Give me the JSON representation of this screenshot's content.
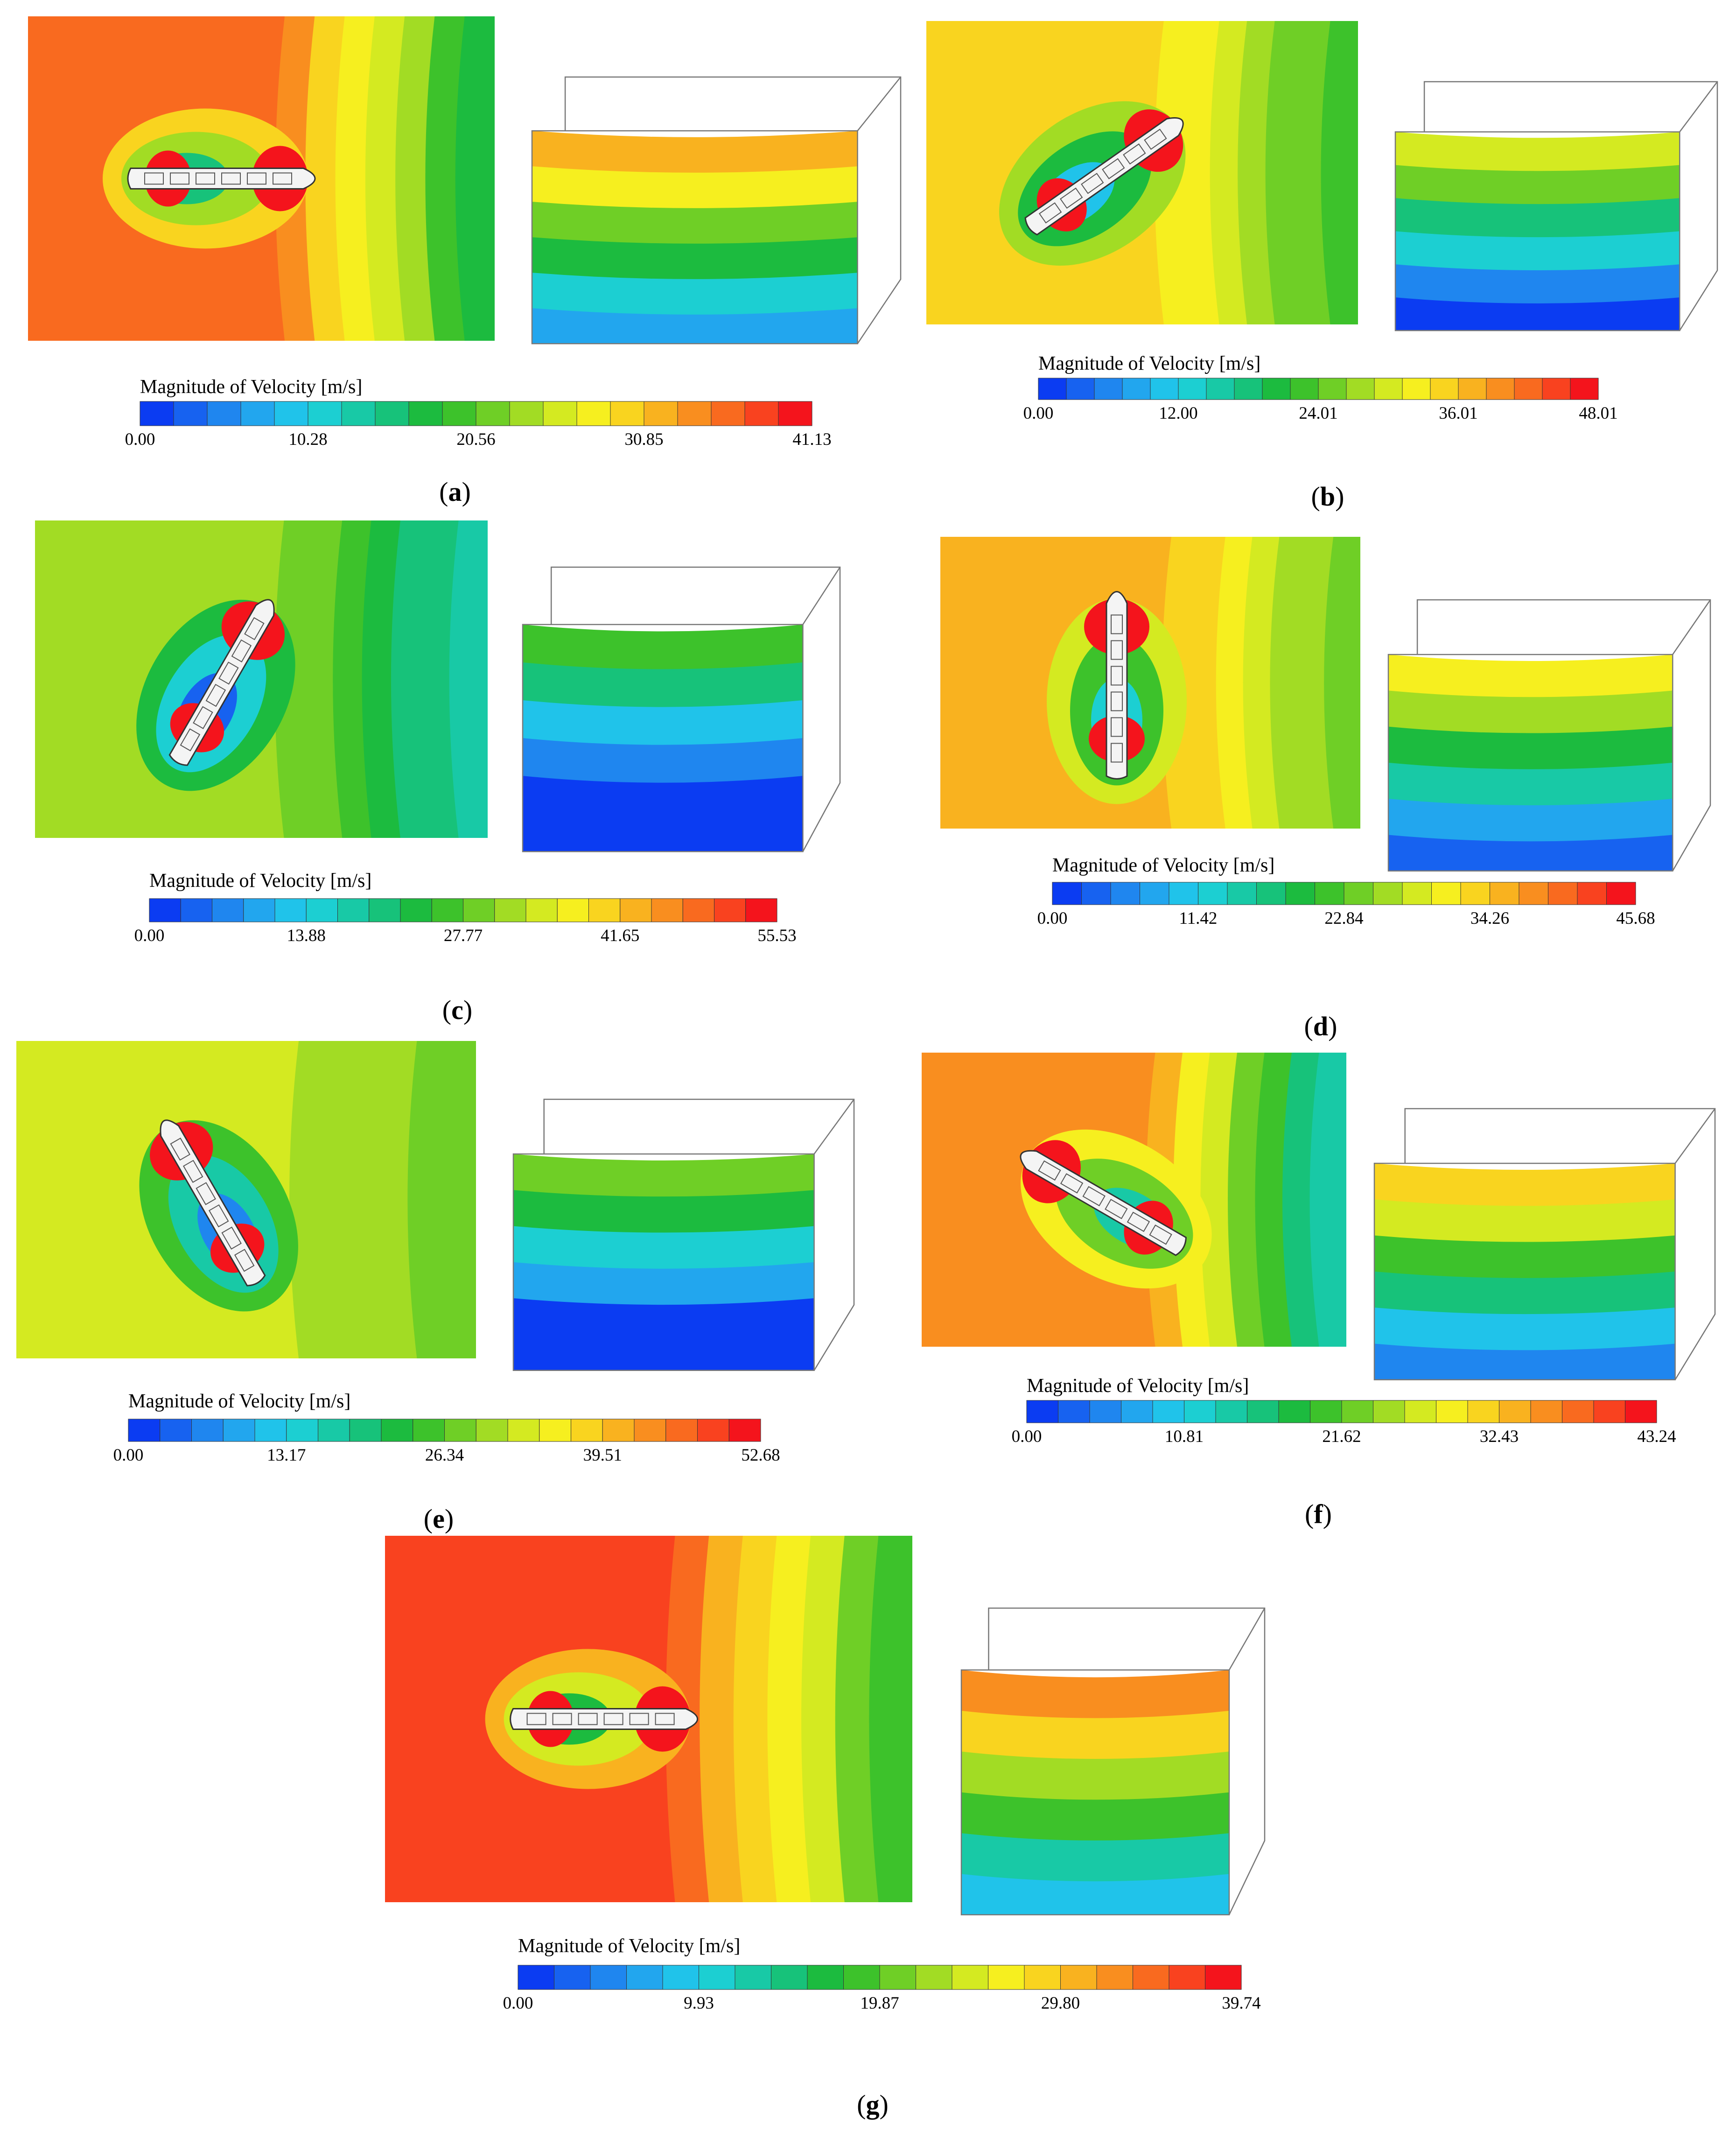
{
  "figure": {
    "panels": [
      {
        "id": "a",
        "colorbar_title": "Magnitude of Velocity [m/s]",
        "ticks": [
          "0.00",
          "10.28",
          "20.56",
          "30.85",
          "41.13"
        ],
        "caption_label": "a",
        "ship_angle_deg": 0
      },
      {
        "id": "b",
        "colorbar_title": "Magnitude of Velocity [m/s]",
        "ticks": [
          "0.00",
          "12.00",
          "24.01",
          "36.01",
          "48.01"
        ],
        "caption_label": "b",
        "ship_angle_deg": -35
      },
      {
        "id": "c",
        "colorbar_title": "Magnitude of Velocity [m/s]",
        "ticks": [
          "0.00",
          "13.88",
          "27.77",
          "41.65",
          "55.53"
        ],
        "caption_label": "c",
        "ship_angle_deg": -60
      },
      {
        "id": "d",
        "colorbar_title": "Magnitude of Velocity [m/s]",
        "ticks": [
          "0.00",
          "11.42",
          "22.84",
          "34.26",
          "45.68"
        ],
        "caption_label": "d",
        "ship_angle_deg": -90
      },
      {
        "id": "e",
        "colorbar_title": "Magnitude of Velocity [m/s]",
        "ticks": [
          "0.00",
          "13.17",
          "26.34",
          "39.51",
          "52.68"
        ],
        "caption_label": "e",
        "ship_angle_deg": -120
      },
      {
        "id": "f",
        "colorbar_title": "Magnitude of Velocity [m/s]",
        "ticks": [
          "0.00",
          "10.81",
          "21.62",
          "32.43",
          "43.24"
        ],
        "caption_label": "f",
        "ship_angle_deg": -150
      },
      {
        "id": "g",
        "colorbar_title": "Magnitude of Velocity [m/s]",
        "ticks": [
          "0.00",
          "9.93",
          "19.87",
          "29.80",
          "39.74"
        ],
        "caption_label": "g",
        "ship_angle_deg": 0
      }
    ],
    "colormap": [
      "#0b3cf2",
      "#1762f0",
      "#1f86ef",
      "#22a6ee",
      "#20c3ea",
      "#1ccfd2",
      "#18c9a6",
      "#17c27a",
      "#1cbb3f",
      "#3dc22b",
      "#6fcf26",
      "#a2dc24",
      "#d4ea21",
      "#f6ef1f",
      "#f9d41f",
      "#f9b21f",
      "#f98e1f",
      "#f96a1f",
      "#f9421f",
      "#f4141c"
    ],
    "caption_open": "(",
    "caption_close": ")"
  }
}
